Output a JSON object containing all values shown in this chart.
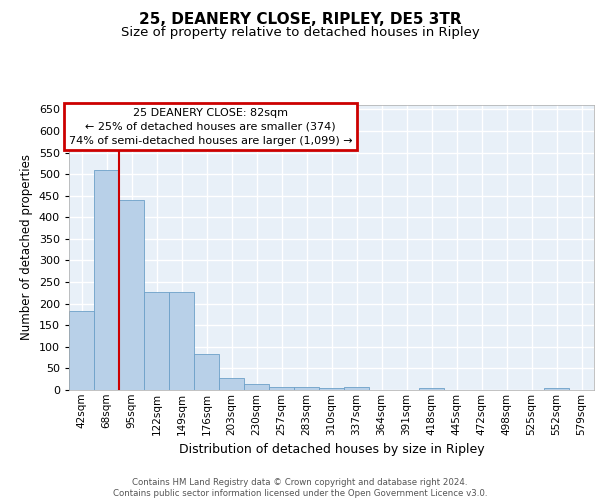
{
  "title": "25, DEANERY CLOSE, RIPLEY, DE5 3TR",
  "subtitle": "Size of property relative to detached houses in Ripley",
  "xlabel": "Distribution of detached houses by size in Ripley",
  "ylabel": "Number of detached properties",
  "categories": [
    "42sqm",
    "68sqm",
    "95sqm",
    "122sqm",
    "149sqm",
    "176sqm",
    "203sqm",
    "230sqm",
    "257sqm",
    "283sqm",
    "310sqm",
    "337sqm",
    "364sqm",
    "391sqm",
    "418sqm",
    "445sqm",
    "472sqm",
    "498sqm",
    "525sqm",
    "552sqm",
    "579sqm"
  ],
  "values": [
    183,
    510,
    440,
    226,
    226,
    84,
    27,
    14,
    8,
    7,
    5,
    8,
    0,
    0,
    5,
    0,
    0,
    0,
    0,
    5,
    0
  ],
  "bar_color": "#b8d0e8",
  "bar_edge_color": "#6ca0c8",
  "bg_color": "#e8f0f8",
  "grid_color": "#ffffff",
  "red_line_x": 1.5,
  "annotation_text": "25 DEANERY CLOSE: 82sqm\n← 25% of detached houses are smaller (374)\n74% of semi-detached houses are larger (1,099) →",
  "annotation_box_edgecolor": "#cc0000",
  "ylim": [
    0,
    660
  ],
  "yticks": [
    0,
    50,
    100,
    150,
    200,
    250,
    300,
    350,
    400,
    450,
    500,
    550,
    600,
    650
  ],
  "footer_text": "Contains HM Land Registry data © Crown copyright and database right 2024.\nContains public sector information licensed under the Open Government Licence v3.0.",
  "title_fontsize": 11,
  "subtitle_fontsize": 9.5,
  "xlabel_fontsize": 9,
  "ylabel_fontsize": 8.5,
  "annotation_fontsize": 8,
  "tick_fontsize": 7.5,
  "ytick_fontsize": 8
}
